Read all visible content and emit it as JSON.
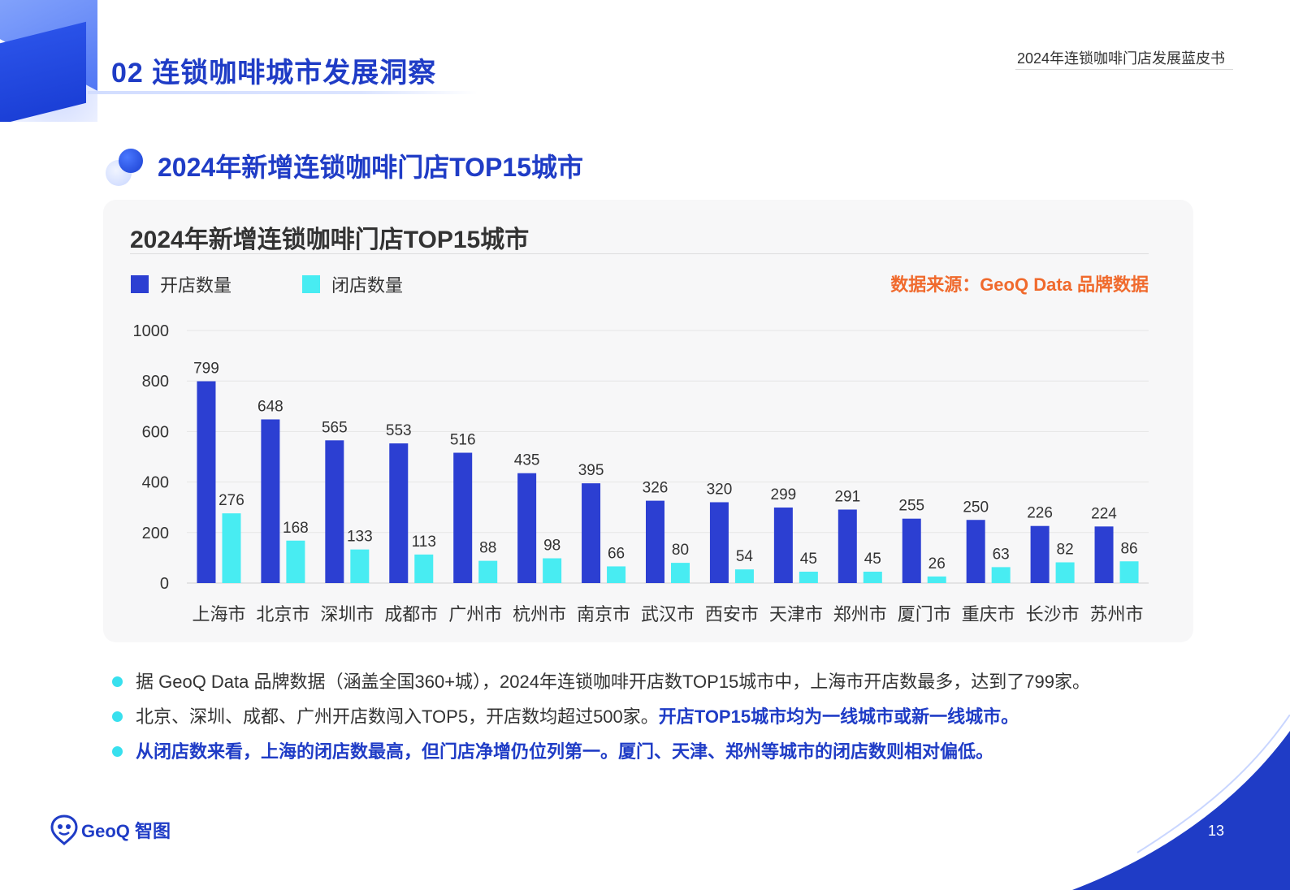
{
  "header": {
    "section_title": "02 连锁咖啡城市发展洞察",
    "report_name": "2024年连锁咖啡门店发展蓝皮书"
  },
  "subtitle": "2024年新增连锁咖啡门店TOP15城市",
  "card": {
    "title": "2024年新增连锁咖啡门店TOP15城市",
    "source": "数据来源：GeoQ Data 品牌数据"
  },
  "chart_data": {
    "type": "bar",
    "title": "2024年新增连锁咖啡门店TOP15城市",
    "categories": [
      "上海市",
      "北京市",
      "深圳市",
      "成都市",
      "广州市",
      "杭州市",
      "南京市",
      "武汉市",
      "西安市",
      "天津市",
      "郑州市",
      "厦门市",
      "重庆市",
      "长沙市",
      "苏州市"
    ],
    "series": [
      {
        "name": "开店数量",
        "color": "#2c3fd2",
        "values": [
          799,
          648,
          565,
          553,
          516,
          435,
          395,
          326,
          320,
          299,
          291,
          255,
          250,
          226,
          224
        ]
      },
      {
        "name": "闭店数量",
        "color": "#48ecf2",
        "values": [
          276,
          168,
          133,
          113,
          88,
          98,
          66,
          80,
          54,
          45,
          45,
          26,
          63,
          82,
          86
        ]
      }
    ],
    "ylim": [
      0,
      1000
    ],
    "yticks": [
      0,
      200,
      400,
      600,
      800,
      1000
    ],
    "grid": true,
    "legend": "top-left"
  },
  "bullets": [
    {
      "text": "据 GeoQ Data 品牌数据（涵盖全国360+城），2024年连锁咖啡开店数TOP15城市中，上海市开店数最多，达到了799家。",
      "highlight": ""
    },
    {
      "text": "北京、深圳、成都、广州开店数闯入TOP5，开店数均超过500家。",
      "highlight": "开店TOP15城市均为一线城市或新一线城市。"
    },
    {
      "text": "",
      "highlight": "从闭店数来看，上海的闭店数最高，但门店净增仍位列第一。厦门、天津、郑州等城市的闭店数则相对偏低。"
    }
  ],
  "footer": {
    "logo_text": "GeoQ 智图",
    "page_number": "13"
  },
  "colors": {
    "brand_blue": "#1f3cc6",
    "open_bar": "#2c3fd2",
    "close_bar": "#48ecf2",
    "source_orange": "#f06a2d",
    "bullet_dot": "#38e0ee"
  }
}
